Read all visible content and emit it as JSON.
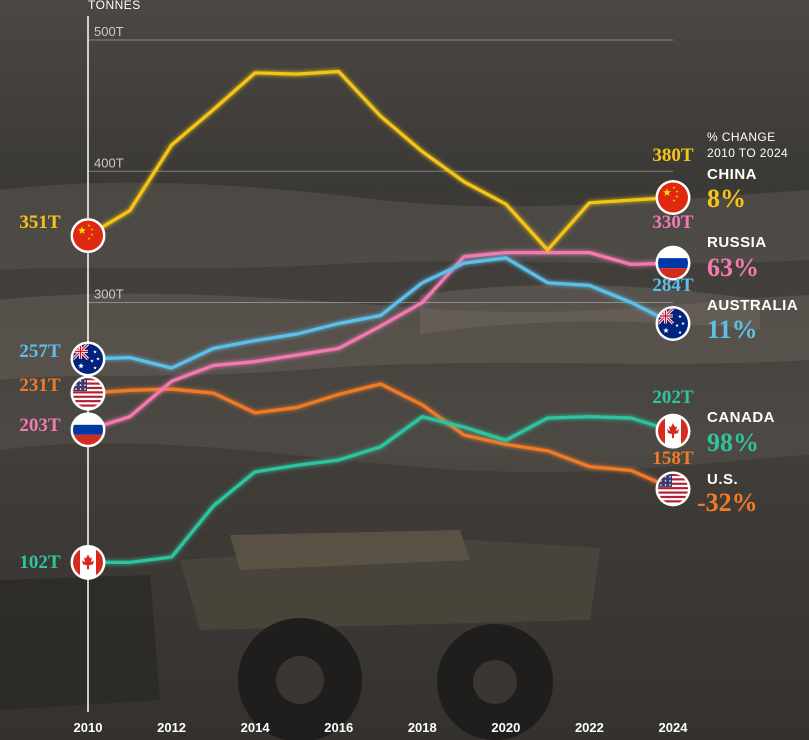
{
  "chart_data": {
    "type": "line",
    "ylabel": "TONNES",
    "x": [
      2010,
      2011,
      2012,
      2013,
      2014,
      2015,
      2016,
      2017,
      2018,
      2019,
      2020,
      2021,
      2022,
      2023,
      2024
    ],
    "xticks": [
      "2010",
      "2012",
      "2014",
      "2016",
      "2018",
      "2020",
      "2022",
      "2024"
    ],
    "yticks": [
      "300T",
      "400T",
      "500T"
    ],
    "ylim": [
      100,
      500
    ],
    "annotation": [
      "% CHANGE",
      "2010 TO 2024"
    ],
    "series": [
      {
        "name": "CHINA",
        "color": "#f5c518",
        "flag": "china-flag",
        "start_label": "351T",
        "end_label": "380T",
        "change": "8%",
        "values": [
          351,
          370,
          420,
          447,
          475,
          474,
          476,
          442,
          415,
          392,
          375,
          340,
          376,
          378,
          380
        ]
      },
      {
        "name": "RUSSIA",
        "color": "#f27ab0",
        "flag": "russia-flag",
        "start_label": "203T",
        "end_label": "330T",
        "change": "63%",
        "values": [
          203,
          213,
          240,
          252,
          255,
          260,
          265,
          282,
          300,
          335,
          338,
          338,
          338,
          329,
          330
        ]
      },
      {
        "name": "AUSTRALIA",
        "color": "#5bc0eb",
        "flag": "australia-flag",
        "start_label": "257T",
        "end_label": "284T",
        "change": "11%",
        "values": [
          257,
          258,
          250,
          265,
          271,
          276,
          284,
          290,
          315,
          330,
          334,
          315,
          313,
          300,
          284
        ]
      },
      {
        "name": "CANADA",
        "color": "#2ec4a0",
        "flag": "canada-flag",
        "start_label": "102T",
        "end_label": "202T",
        "change": "98%",
        "values": [
          102,
          102,
          106,
          145,
          171,
          176,
          180,
          190,
          213,
          205,
          195,
          212,
          213,
          212,
          202
        ]
      },
      {
        "name": "U.S.",
        "color": "#f07a28",
        "flag": "us-flag",
        "start_label": "231T",
        "end_label": "158T",
        "change": "-32%",
        "values": [
          231,
          233,
          234,
          231,
          216,
          220,
          230,
          238,
          222,
          199,
          192,
          187,
          175,
          172,
          158
        ]
      }
    ]
  }
}
